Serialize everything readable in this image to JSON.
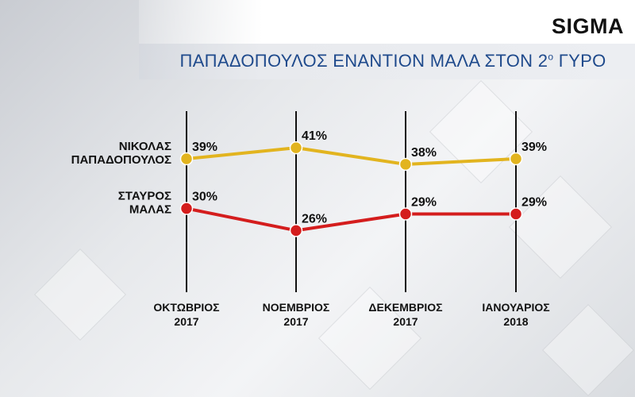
{
  "header": {
    "brand": "SIGMA",
    "title": "ΠΑΠΑΔΟΠΟΥΛΟΣ ΕΝΑΝΤΙΟΝ ΜΑΛΑ ΣΤΟΝ 2",
    "title_sup": "ο",
    "title_suffix": " ΓΥΡΟ"
  },
  "chart_data": {
    "type": "line",
    "categories": [
      [
        "ΟΚΤΩΒΡΙΟΣ",
        "2017"
      ],
      [
        "ΝΟΕΜΒΡΙΟΣ",
        "2017"
      ],
      [
        "ΔΕΚΕΜΒΡΙΟΣ",
        "2017"
      ],
      [
        "ΙΑΝΟΥΑΡΙΟΣ",
        "2018"
      ]
    ],
    "series": [
      {
        "name": [
          "ΝΙΚΟΛΑΣ",
          "ΠΑΠΑΔΟΠΟΥΛΟΣ"
        ],
        "values": [
          39,
          41,
          38,
          39
        ],
        "labels": [
          "39%",
          "41%",
          "38%",
          "39%"
        ],
        "color": "#e2b41f"
      },
      {
        "name": [
          "ΣΤΑΥΡΟΣ",
          "ΜΑΛΑΣ"
        ],
        "values": [
          30,
          26,
          29,
          29
        ],
        "labels": [
          "30%",
          "26%",
          "29%",
          "29%"
        ],
        "color": "#d41d1d"
      }
    ],
    "unit": "%",
    "grid": "vertical lines at each month"
  }
}
